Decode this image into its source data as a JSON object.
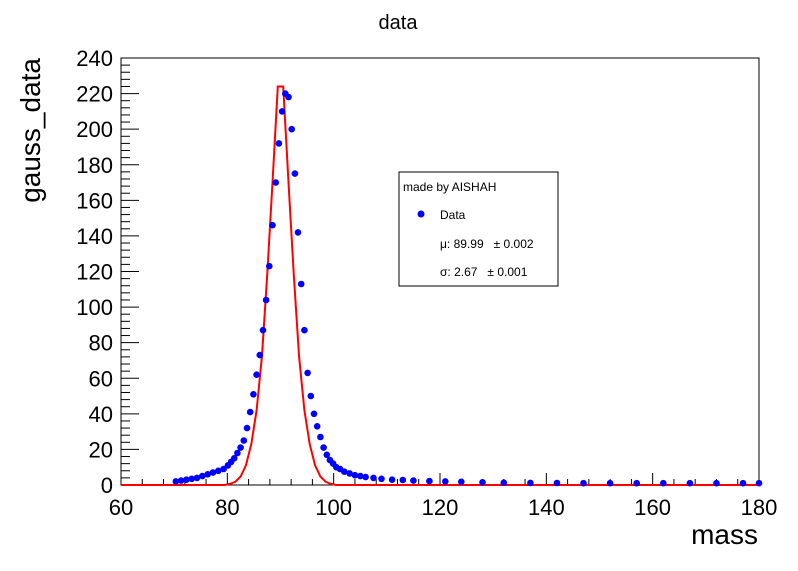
{
  "chart_data": {
    "type": "scatter",
    "title": "data",
    "xlabel": "mass",
    "ylabel": "gauss_data",
    "xlim": [
      60,
      180
    ],
    "ylim": [
      0,
      240
    ],
    "x_ticks": [
      "60",
      "80",
      "100",
      "120",
      "140",
      "160",
      "180"
    ],
    "y_ticks": [
      "0",
      "20",
      "40",
      "60",
      "80",
      "100",
      "120",
      "140",
      "160",
      "180",
      "200",
      "220",
      "240"
    ],
    "grid": false,
    "legend": {
      "placement": "center-right",
      "header": "made by AISHAH",
      "entries": [
        {
          "label": "Data",
          "marker": "circle",
          "color": "#0000ff"
        },
        {
          "label": "μ: 89.99   ± 0.002"
        },
        {
          "label": "σ: 2.67   ± 0.001"
        }
      ]
    },
    "series": [
      {
        "name": "Data",
        "kind": "points",
        "color": "#0000ff",
        "x": [
          70.3,
          71.3,
          72.3,
          73.3,
          74.3,
          75.3,
          76.3,
          77.3,
          78.3,
          79.3,
          80.1,
          80.7,
          81.3,
          81.9,
          82.5,
          83.1,
          83.7,
          84.3,
          84.9,
          85.5,
          86.1,
          86.7,
          87.3,
          87.9,
          88.5,
          89.1,
          89.7,
          90.3,
          90.9,
          91.5,
          92.1,
          92.7,
          93.3,
          93.9,
          94.5,
          95.1,
          95.7,
          96.3,
          96.9,
          97.5,
          98.1,
          98.7,
          99.3,
          99.9,
          100.5,
          101.2,
          102.0,
          103.0,
          104.0,
          105.0,
          106.0,
          107.5,
          109.0,
          111.0,
          113.0,
          115.0,
          118.0,
          121.0,
          124.0,
          128.0,
          132.0,
          137.0,
          142.0,
          147.0,
          152.0,
          157.0,
          162.0,
          167.0,
          172.0,
          177.0,
          180.0
        ],
        "y": [
          2,
          2.5,
          3,
          3.5,
          4,
          5,
          6,
          7,
          8,
          9,
          11,
          13,
          15,
          18,
          21,
          25,
          32,
          41,
          51,
          62,
          73,
          87,
          104,
          123,
          146,
          170,
          192,
          210,
          220,
          218,
          200,
          175,
          142,
          113,
          87,
          63,
          50,
          40,
          33,
          27,
          21,
          17,
          14,
          12,
          10,
          9,
          7.5,
          6.5,
          5.5,
          5,
          4.5,
          4,
          3.5,
          3,
          2.8,
          2.5,
          2.2,
          2,
          1.8,
          1.5,
          1.3,
          1.2,
          1.1,
          1,
          1,
          1,
          1,
          1,
          1,
          1,
          1
        ]
      },
      {
        "name": "",
        "kind": "line",
        "color": "#ff0000",
        "x": [
          60,
          79.5,
          80.5,
          81.5,
          82.5,
          83.5,
          84.5,
          85.5,
          86.5,
          87.5,
          88.5,
          89.5,
          90.5,
          91.5,
          92.5,
          93.5,
          94.5,
          95.5,
          96.5,
          97.5,
          98.5,
          99.5,
          100.5,
          180
        ],
        "y": [
          0,
          0,
          0.6,
          1.8,
          4.8,
          11,
          23,
          42,
          72,
          118,
          170,
          224,
          224,
          170,
          118,
          72,
          42,
          23,
          11,
          4.8,
          1.8,
          0.6,
          0,
          0
        ]
      }
    ]
  }
}
